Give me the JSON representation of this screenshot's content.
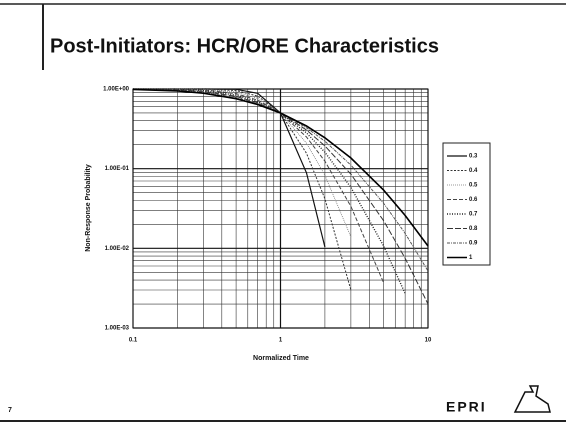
{
  "slide_number": "7",
  "logo": "EPRI",
  "chart_data": {
    "type": "line",
    "title": "Post-Initiators: HCR/ORE Characteristics",
    "x_label": "Normalized Time",
    "y_label": "Non-Response Probability",
    "log_x": true,
    "log_y": true,
    "grid": true,
    "legend": "right",
    "xlim": [
      0.1,
      10
    ],
    "xticks": [
      0.1,
      1,
      10
    ],
    "ylim": [
      0.001,
      1
    ],
    "yticks": [
      {
        "value": 0.001,
        "label": "1.00E-03"
      },
      {
        "value": 0.01,
        "label": "1.00E-02"
      },
      {
        "value": 0.1,
        "label": "1.00E-01"
      },
      {
        "value": 1,
        "label": "1.00E+00"
      }
    ],
    "x": [
      0.1,
      0.2,
      0.3,
      0.5,
      0.7,
      1,
      1.5,
      2,
      3,
      5,
      7,
      10
    ],
    "series": [
      {
        "name": "0.3",
        "color": "#111111",
        "values": [
          1,
          1,
          1,
          0.99,
          0.883,
          0.5,
          0.0885,
          0.0104,
          null,
          null,
          null,
          null
        ]
      },
      {
        "name": "0.4",
        "color": "#333333",
        "values": [
          1,
          1,
          0.999,
          0.958,
          0.814,
          0.5,
          0.156,
          0.0418,
          0.003,
          null,
          null,
          null
        ]
      },
      {
        "name": "0.5",
        "color": "#777777",
        "values": [
          1,
          0.999,
          0.992,
          0.918,
          0.762,
          0.5,
          0.209,
          0.0827,
          0.0139,
          null,
          null,
          null
        ]
      },
      {
        "name": "0.6",
        "color": "#444444",
        "values": [
          1,
          0.996,
          0.978,
          0.876,
          0.724,
          0.5,
          0.25,
          0.124,
          0.0336,
          0.0037,
          null,
          null
        ]
      },
      {
        "name": "0.7",
        "color": "#222222",
        "values": [
          0.9995,
          0.989,
          0.957,
          0.839,
          0.695,
          0.5,
          0.281,
          0.161,
          0.0582,
          0.0107,
          0.0027,
          null
        ]
      },
      {
        "name": "0.8",
        "color": "#333333",
        "values": [
          0.998,
          0.978,
          0.934,
          0.807,
          0.672,
          0.5,
          0.306,
          0.193,
          0.0853,
          0.0222,
          0.0075,
          0.002
        ]
      },
      {
        "name": "0.9",
        "color": "#555555",
        "values": [
          0.995,
          0.963,
          0.91,
          0.779,
          0.654,
          0.5,
          0.326,
          0.221,
          0.111,
          0.0367,
          0.0154,
          0.0052
        ]
      },
      {
        "name": "1",
        "color": "#000000",
        "values": [
          0.989,
          0.946,
          0.885,
          0.756,
          0.639,
          0.5,
          0.343,
          0.244,
          0.136,
          0.0538,
          0.0258,
          0.0107
        ]
      }
    ]
  }
}
